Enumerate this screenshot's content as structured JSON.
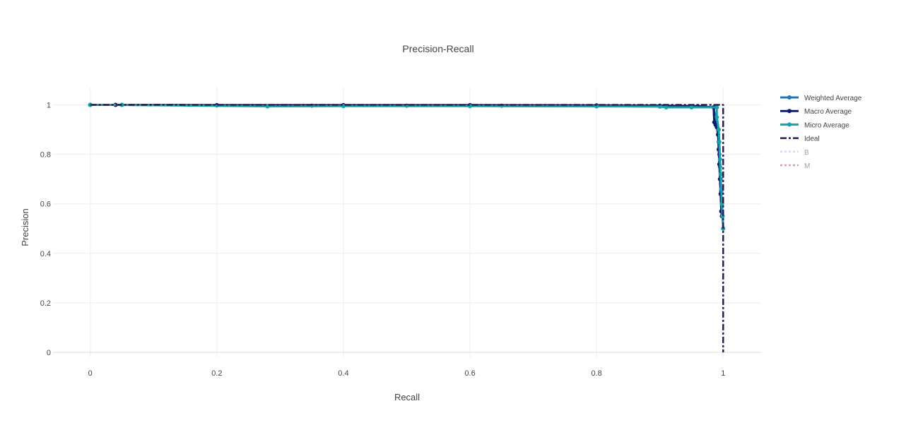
{
  "chart_data": {
    "type": "line",
    "title": "Precision-Recall",
    "xlabel": "Recall",
    "ylabel": "Precision",
    "xlim": [
      -0.06,
      1.06
    ],
    "ylim": [
      -0.02,
      1.07
    ],
    "xticks": [
      0,
      0.2,
      0.4,
      0.6,
      0.8,
      1
    ],
    "yticks": [
      0,
      0.2,
      0.4,
      0.6,
      0.8,
      1
    ],
    "xtick_labels": [
      "0",
      "0.2",
      "0.4",
      "0.6",
      "0.8",
      "1"
    ],
    "ytick_labels": [
      "0",
      "0.2",
      "0.4",
      "0.6",
      "0.8",
      "1"
    ],
    "grid": true,
    "legend_position": "top-right",
    "series": [
      {
        "name": "Weighted Average",
        "color": "#1f77b4",
        "dash": "solid",
        "markers": true,
        "visible": true,
        "points": [
          [
            0,
            1
          ],
          [
            0.05,
            1
          ],
          [
            0.2,
            0.998
          ],
          [
            0.35,
            0.997
          ],
          [
            0.5,
            0.997
          ],
          [
            0.65,
            0.997
          ],
          [
            0.8,
            0.996
          ],
          [
            0.9,
            0.995
          ],
          [
            0.95,
            0.993
          ],
          [
            0.985,
            0.99
          ],
          [
            0.987,
            0.96
          ],
          [
            0.99,
            0.92
          ],
          [
            0.992,
            0.88
          ],
          [
            0.993,
            0.85
          ],
          [
            0.994,
            0.8
          ],
          [
            0.995,
            0.75
          ],
          [
            0.996,
            0.7
          ],
          [
            0.997,
            0.65
          ],
          [
            0.998,
            0.6
          ],
          [
            0.999,
            0.55
          ],
          [
            1,
            0.5
          ]
        ]
      },
      {
        "name": "Macro Average",
        "color": "#0d1a6e",
        "dash": "solid",
        "markers": true,
        "visible": true,
        "points": [
          [
            0,
            1
          ],
          [
            0.04,
            1
          ],
          [
            0.2,
            0.999
          ],
          [
            0.4,
            0.999
          ],
          [
            0.6,
            0.999
          ],
          [
            0.8,
            0.998
          ],
          [
            0.9,
            0.997
          ],
          [
            0.96,
            0.995
          ],
          [
            0.985,
            0.99
          ],
          [
            0.986,
            0.93
          ],
          [
            0.988,
            0.92
          ],
          [
            0.99,
            0.91
          ],
          [
            0.992,
            0.88
          ],
          [
            0.993,
            0.82
          ],
          [
            0.994,
            0.76
          ],
          [
            0.995,
            0.7
          ],
          [
            0.996,
            0.64
          ],
          [
            0.997,
            0.57
          ],
          [
            0.998,
            0.55
          ]
        ]
      },
      {
        "name": "Micro Average",
        "color": "#17a2a8",
        "dash": "solid",
        "markers": true,
        "visible": true,
        "points": [
          [
            0,
            1
          ],
          [
            0.05,
            1
          ],
          [
            0.28,
            0.994
          ],
          [
            0.4,
            0.995
          ],
          [
            0.6,
            0.995
          ],
          [
            0.8,
            0.994
          ],
          [
            0.9,
            0.993
          ],
          [
            0.91,
            0.99
          ],
          [
            0.95,
            0.99
          ],
          [
            0.99,
            0.99
          ],
          [
            0.99,
            0.95
          ],
          [
            0.993,
            0.9
          ],
          [
            0.994,
            0.85
          ],
          [
            0.995,
            0.78
          ],
          [
            0.996,
            0.72
          ],
          [
            0.997,
            0.66
          ],
          [
            0.998,
            0.6
          ],
          [
            0.999,
            0.55
          ],
          [
            1,
            0.5
          ]
        ]
      },
      {
        "name": "Ideal",
        "color": "#2b1d52",
        "dash": "dashdot",
        "markers": false,
        "visible": true,
        "points": [
          [
            0,
            1
          ],
          [
            1,
            1
          ],
          [
            1,
            0
          ]
        ]
      },
      {
        "name": "B",
        "color": "#b3b3e6",
        "dash": "dot",
        "markers": false,
        "visible": false,
        "points": []
      },
      {
        "name": "M",
        "color": "#9e4a61",
        "dash": "dot",
        "markers": false,
        "visible": false,
        "points": []
      }
    ]
  }
}
